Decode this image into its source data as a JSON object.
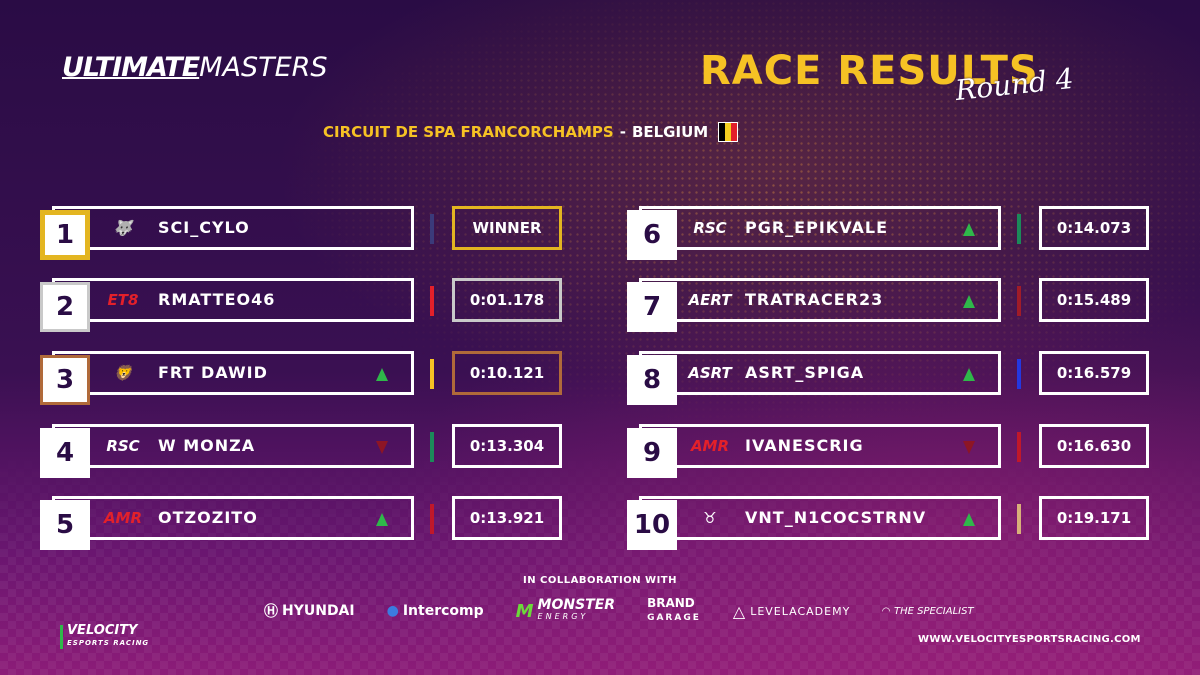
{
  "brand": {
    "ultimate": "ULTIMATE",
    "masters": "MASTERS"
  },
  "header": {
    "title": "RACE RESULTS",
    "subtitle": "Round 4"
  },
  "venue": {
    "track": "CIRCUIT DE SPA FRANCORCHAMPS",
    "separator": "-",
    "country": "BELGIUM"
  },
  "flag_colors": [
    "#000000",
    "#f6d020",
    "#e3202a"
  ],
  "results": [
    {
      "pos": "1",
      "team": "snowwolf-logo",
      "driver": "SCI_CYLO",
      "trend": "none",
      "team_color": "#3b3a7a",
      "time": "WINNER",
      "medal": "gold"
    },
    {
      "pos": "2",
      "team": "ET8",
      "driver": "RMATTEO46",
      "trend": "none",
      "team_color": "#e3202a",
      "time": "0:01.178",
      "medal": "silver"
    },
    {
      "pos": "3",
      "team": "lion-logo",
      "driver": "FRT DAWID",
      "trend": "up",
      "team_color": "#f6c224",
      "time": "0:10.121",
      "medal": "bronze"
    },
    {
      "pos": "4",
      "team": "RSC",
      "driver": "W MONZA",
      "trend": "down",
      "team_color": "#1c8a5a",
      "time": "0:13.304",
      "medal": "none"
    },
    {
      "pos": "5",
      "team": "AMR",
      "driver": "OTZOZITO",
      "trend": "up",
      "team_color": "#c0182a",
      "time": "0:13.921",
      "medal": "none"
    },
    {
      "pos": "6",
      "team": "RSC",
      "driver": "PGR_EPIKVALE",
      "trend": "up",
      "team_color": "#1c8a5a",
      "time": "0:14.073",
      "medal": "none"
    },
    {
      "pos": "7",
      "team": "AERT",
      "driver": "TRATRACER23",
      "trend": "up",
      "team_color": "#a01c28",
      "time": "0:15.489",
      "medal": "none"
    },
    {
      "pos": "8",
      "team": "ASRT",
      "driver": "ASRT_SPIGA",
      "trend": "up",
      "team_color": "#2438e0",
      "time": "0:16.579",
      "medal": "none"
    },
    {
      "pos": "9",
      "team": "AMR",
      "driver": "IVANESCRIG",
      "trend": "down",
      "team_color": "#c0182a",
      "time": "0:16.630",
      "medal": "none"
    },
    {
      "pos": "10",
      "team": "bull-logo",
      "driver": "VNT_N1COCSTRNV",
      "trend": "up",
      "team_color": "#d8b07a",
      "time": "0:19.171",
      "medal": "none"
    }
  ],
  "footer": {
    "collab_text": "IN COLLABORATION WITH",
    "sponsors": [
      "HYUNDAI",
      "Intercomp",
      "MONSTER",
      "BRAND",
      "LEVELACADEMY",
      "THE SPECIALIST"
    ],
    "sponsor_sub": {
      "monster": "ENERGY",
      "brand": "GARAGE"
    },
    "velocity": {
      "name": "VELOCITY",
      "sub": "ESPORTS RACING"
    },
    "website": "WWW.VELOCITYESPORTSRACING.COM"
  }
}
